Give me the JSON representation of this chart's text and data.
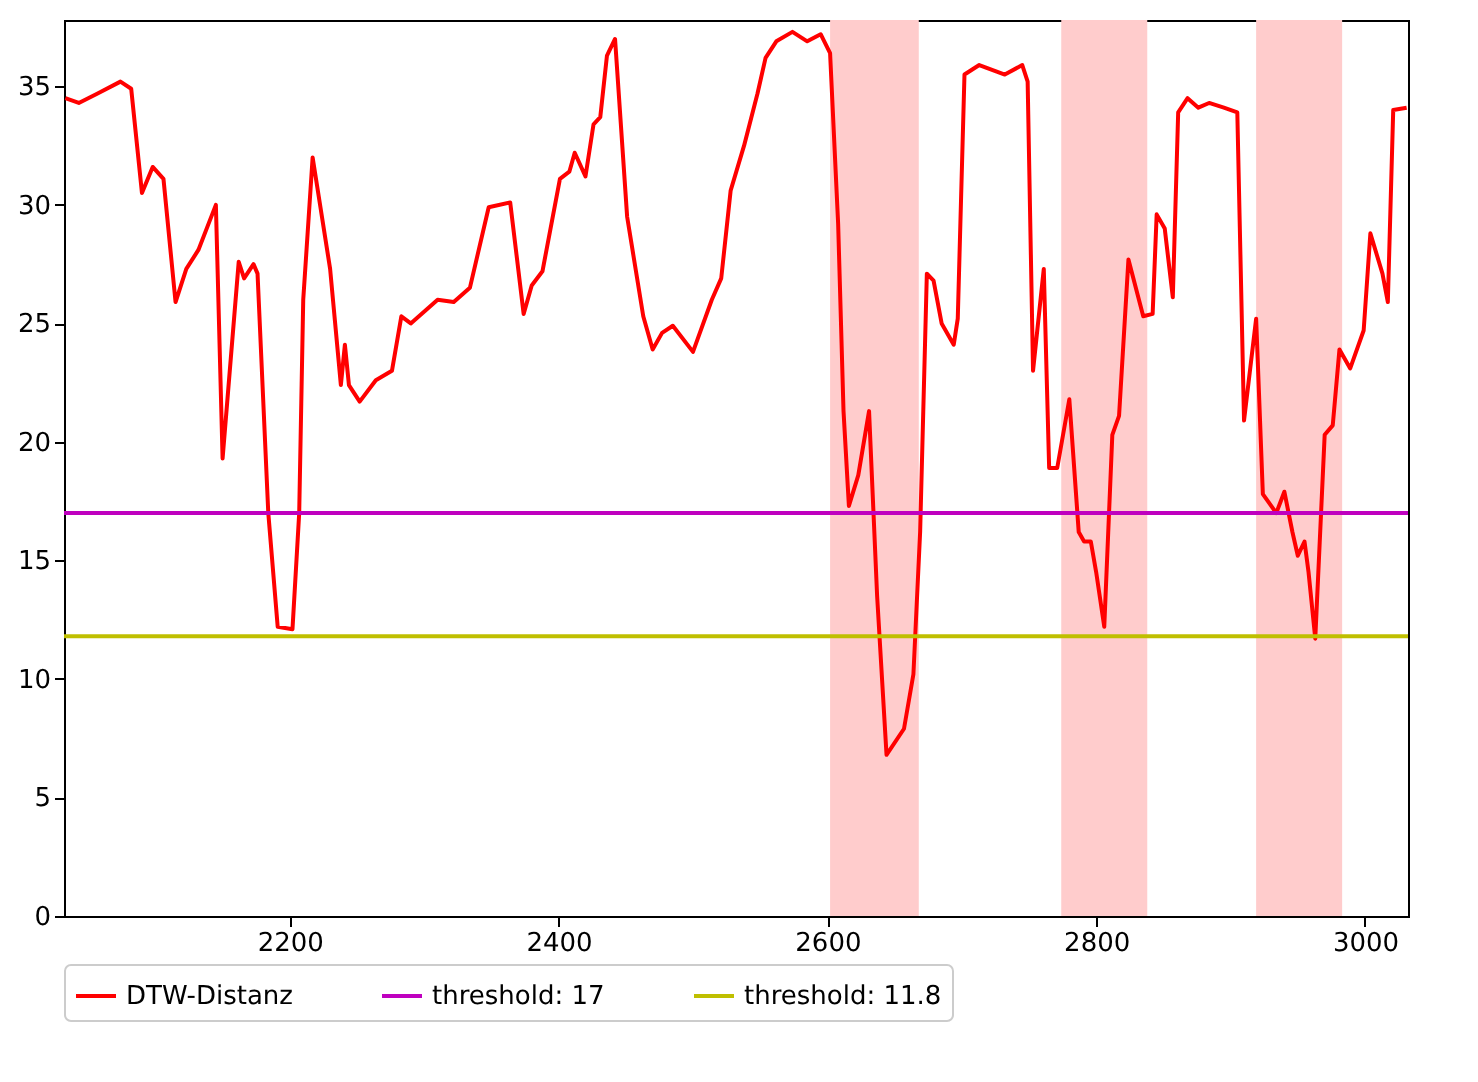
{
  "chart_data": {
    "type": "line",
    "x": [
      2033,
      2043,
      2057,
      2074,
      2082,
      2090,
      2098,
      2106,
      2115,
      2123,
      2132,
      2145,
      2150,
      2162,
      2166,
      2173,
      2176,
      2184,
      2191,
      2202,
      2207,
      2210,
      2217,
      2230,
      2238,
      2241,
      2244,
      2252,
      2264,
      2276,
      2283,
      2290,
      2310,
      2322,
      2334,
      2348,
      2364,
      2374,
      2380,
      2388,
      2401,
      2408,
      2412,
      2420,
      2426,
      2431,
      2436,
      2442,
      2451,
      2455,
      2463,
      2470,
      2477,
      2485,
      2500,
      2514,
      2521,
      2528,
      2538,
      2548,
      2554,
      2562,
      2574,
      2585,
      2595,
      2602,
      2608,
      2612,
      2616,
      2623,
      2631,
      2637,
      2644,
      2657,
      2664,
      2669,
      2674,
      2679,
      2685,
      2694,
      2697,
      2702,
      2713,
      2732,
      2745,
      2749,
      2753,
      2761,
      2765,
      2771,
      2780,
      2787,
      2791,
      2796,
      2800,
      2806,
      2812,
      2817,
      2824,
      2835,
      2842,
      2845,
      2851,
      2857,
      2861,
      2868,
      2876,
      2884,
      2895,
      2905,
      2910,
      2919,
      2924,
      2934,
      2940,
      2946,
      2950,
      2955,
      2958,
      2963,
      2970,
      2976,
      2981,
      2989,
      2999,
      3004,
      3013,
      3017,
      3021,
      3031
    ],
    "series": [
      {
        "name": "DTW-Distanz",
        "color": "#ff0000",
        "values": [
          34.5,
          34.3,
          34.7,
          35.2,
          34.9,
          30.5,
          31.6,
          31.1,
          25.9,
          27.3,
          28.1,
          30.0,
          19.3,
          27.6,
          26.9,
          27.5,
          27.1,
          17.0,
          12.2,
          12.1,
          17.0,
          26.0,
          32.0,
          27.3,
          22.4,
          24.1,
          22.4,
          21.7,
          22.6,
          23.0,
          25.3,
          25.0,
          26.0,
          25.9,
          26.5,
          29.9,
          30.1,
          25.4,
          26.6,
          27.2,
          31.1,
          31.4,
          32.2,
          31.2,
          33.4,
          33.7,
          36.3,
          37.0,
          29.5,
          28.1,
          25.3,
          23.9,
          24.6,
          24.9,
          23.8,
          26.0,
          26.9,
          30.6,
          32.5,
          34.7,
          36.2,
          36.9,
          37.3,
          36.9,
          37.2,
          36.4,
          29.2,
          21.3,
          17.3,
          18.6,
          21.3,
          13.5,
          6.8,
          7.9,
          10.2,
          16.2,
          27.1,
          26.8,
          25.0,
          24.1,
          25.2,
          35.5,
          35.9,
          35.5,
          35.9,
          35.2,
          23.0,
          27.3,
          18.9,
          18.9,
          21.8,
          16.2,
          15.8,
          15.8,
          14.5,
          12.2,
          20.3,
          21.1,
          27.7,
          25.3,
          25.4,
          29.6,
          29.0,
          26.1,
          33.9,
          34.5,
          34.1,
          34.3,
          34.1,
          33.9,
          20.9,
          25.2,
          17.8,
          17.0,
          17.9,
          16.2,
          15.2,
          15.8,
          14.5,
          11.7,
          20.3,
          20.7,
          23.9,
          23.1,
          24.7,
          28.8,
          27.1,
          25.9,
          34.0,
          34.1
        ]
      }
    ],
    "ref_lines": [
      {
        "axis": "y",
        "value": 17,
        "label": "threshold: 17",
        "color": "#bf00bf"
      },
      {
        "axis": "y",
        "value": 11.8,
        "label": "threshold: 11.8",
        "color": "#bfbf00"
      }
    ],
    "bands": [
      {
        "axis": "x",
        "from": 2602,
        "to": 2668,
        "color": "#ffcccc"
      },
      {
        "axis": "x",
        "from": 2774,
        "to": 2838,
        "color": "#ffcccc"
      },
      {
        "axis": "x",
        "from": 2919,
        "to": 2983,
        "color": "#ffcccc"
      }
    ],
    "xlim": [
      2032,
      3032
    ],
    "xticks": [
      2200,
      2400,
      2600,
      2800,
      3000
    ],
    "ylim": [
      0,
      37.8
    ],
    "yticks": [
      0,
      5,
      10,
      15,
      20,
      25,
      30,
      35
    ],
    "grid": false,
    "legend": "bottom",
    "line_style": "solid"
  }
}
